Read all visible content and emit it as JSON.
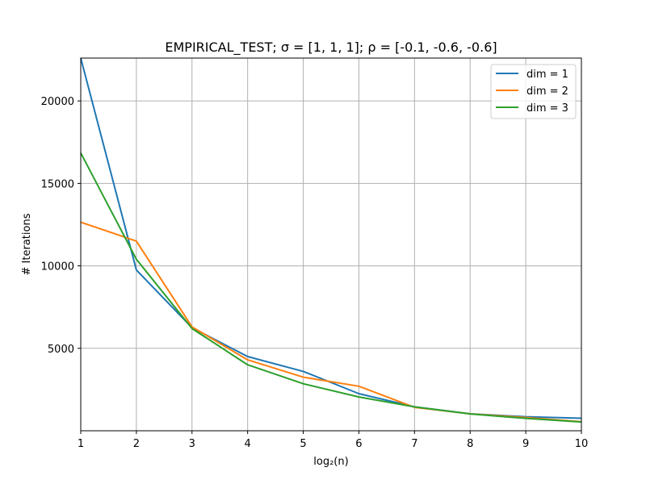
{
  "chart_data": {
    "type": "line",
    "title": "EMPIRICAL_TEST;  σ = [1, 1, 1];  ρ = [-0.1, -0.6, -0.6]",
    "xlabel": "log₂(n)",
    "ylabel": "# Iterations",
    "xlim": [
      1,
      10
    ],
    "ylim": [
      0,
      22600
    ],
    "x_ticks": [
      1,
      2,
      3,
      4,
      5,
      6,
      7,
      8,
      9,
      10
    ],
    "y_ticks": [
      5000,
      10000,
      15000,
      20000
    ],
    "grid": true,
    "legend_position": "top-right",
    "x": [
      1,
      2,
      3,
      4,
      5,
      6,
      7,
      8,
      9,
      10
    ],
    "series": [
      {
        "name": "dim = 1",
        "color": "#1f77b4",
        "values": [
          22600,
          9750,
          6250,
          4500,
          3600,
          2250,
          1450,
          1030,
          850,
          760
        ]
      },
      {
        "name": "dim = 2",
        "color": "#ff7f0e",
        "values": [
          12650,
          11500,
          6300,
          4300,
          3250,
          2700,
          1420,
          1030,
          800,
          550
        ]
      },
      {
        "name": "dim = 3",
        "color": "#2ca02c",
        "values": [
          16850,
          10400,
          6200,
          4000,
          2850,
          2050,
          1450,
          1020,
          750,
          530
        ]
      }
    ]
  }
}
